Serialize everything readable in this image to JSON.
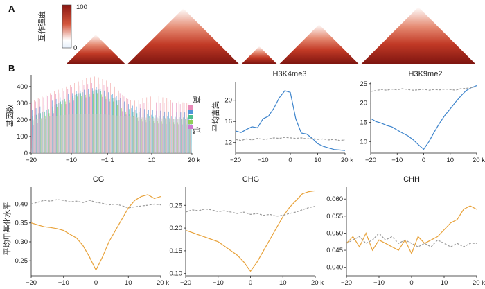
{
  "panel_a": {
    "label": "A",
    "colorbar": {
      "label": "互作强度",
      "max_label": "100",
      "min_label": "0",
      "low_color": "#e6f0fb",
      "mid_color": "#ffffff",
      "high_color": "#8b1712"
    },
    "domains": [
      {
        "start": 0.0,
        "end": 1.0
      },
      {
        "start": 1.05,
        "end": 2.95
      },
      {
        "start": 3.0,
        "end": 3.6
      },
      {
        "start": 3.65,
        "end": 5.0
      },
      {
        "start": 5.05,
        "end": 7.0
      }
    ]
  },
  "panel_b": {
    "label": "B"
  },
  "chart_data": [
    {
      "id": "gene-count",
      "type": "bar",
      "title": "",
      "xlabel": "",
      "ylabel": "基因数",
      "xlim": [
        -20,
        20
      ],
      "ylim": [
        0,
        470
      ],
      "xticks": [
        -20,
        -10,
        -1,
        10,
        20
      ],
      "xtick_labels": [
        "−20",
        "−10",
        "−1 1",
        "10",
        "20 k"
      ],
      "yticks": [
        0,
        100,
        200,
        300,
        400
      ],
      "legend": {
        "position": "right",
        "high_label": "高",
        "low_label": "低",
        "colors": [
          "#e88ab8",
          "#4f93d8",
          "#4cbf8c",
          "#8fd058",
          "#cc7ad0"
        ]
      },
      "bins": 40,
      "series_colors": [
        "#e88ab8",
        "#4f93d8",
        "#4cbf8c",
        "#8fd058",
        "#cc7ad0",
        "#f2a0a0",
        "#6fc3d8"
      ],
      "series_values": [
        [
          300,
          310,
          325,
          335,
          345,
          350,
          355,
          360,
          370,
          385,
          395,
          400,
          405,
          410,
          415,
          420,
          420,
          415,
          410,
          400,
          395,
          380,
          360,
          340,
          325,
          310,
          300,
          295,
          300,
          305,
          310,
          305,
          300,
          300,
          310,
          305,
          300,
          295,
          300,
          300
        ],
        [
          260,
          270,
          280,
          290,
          300,
          315,
          325,
          335,
          345,
          355,
          360,
          370,
          375,
          380,
          385,
          390,
          395,
          385,
          375,
          365,
          355,
          345,
          330,
          310,
          295,
          285,
          280,
          270,
          265,
          260,
          260,
          255,
          255,
          250,
          250,
          250,
          245,
          245,
          245,
          240
        ],
        [
          220,
          230,
          240,
          250,
          265,
          280,
          295,
          310,
          325,
          335,
          345,
          355,
          360,
          365,
          370,
          375,
          378,
          370,
          360,
          345,
          330,
          315,
          295,
          280,
          265,
          250,
          240,
          230,
          225,
          220,
          218,
          215,
          212,
          210,
          210,
          208,
          205,
          205,
          205,
          200
        ],
        [
          190,
          200,
          210,
          225,
          240,
          255,
          275,
          295,
          310,
          320,
          330,
          340,
          345,
          350,
          355,
          358,
          360,
          352,
          340,
          325,
          310,
          290,
          270,
          250,
          235,
          222,
          212,
          205,
          200,
          195,
          195,
          192,
          190,
          190,
          188,
          186,
          185,
          185,
          184,
          184
        ],
        [
          170,
          180,
          190,
          205,
          220,
          240,
          260,
          280,
          295,
          305,
          315,
          325,
          330,
          335,
          338,
          342,
          345,
          338,
          325,
          310,
          292,
          272,
          252,
          232,
          218,
          206,
          196,
          190,
          186,
          182,
          180,
          178,
          176,
          175,
          175,
          174,
          173,
          172,
          172,
          171
        ],
        [
          320,
          330,
          340,
          350,
          360,
          370,
          380,
          390,
          400,
          410,
          420,
          430,
          440,
          450,
          455,
          460,
          455,
          445,
          435,
          420,
          400,
          375,
          350,
          330,
          320,
          315,
          320,
          330,
          335,
          340,
          340,
          345,
          335,
          330,
          320,
          315,
          310,
          305,
          300,
          300
        ],
        [
          230,
          240,
          250,
          260,
          275,
          290,
          300,
          315,
          330,
          340,
          350,
          360,
          365,
          370,
          375,
          380,
          382,
          375,
          365,
          350,
          335,
          320,
          300,
          285,
          270,
          258,
          248,
          240,
          235,
          230,
          228,
          225,
          222,
          220,
          220,
          218,
          216,
          215,
          214,
          212
        ]
      ],
      "gray_overlay": [
        200,
        205,
        210,
        215,
        220,
        222,
        225,
        228,
        230,
        232,
        233,
        234,
        235,
        236,
        236,
        236,
        235,
        234,
        232,
        230,
        228,
        226,
        224,
        222,
        220,
        218,
        216,
        215,
        214,
        212,
        211,
        210,
        209,
        208,
        207,
        206,
        205,
        204,
        203,
        202
      ]
    },
    {
      "id": "h3k4me3",
      "type": "line",
      "title": "H3K4me3",
      "xlabel": "",
      "ylabel": "平均富集",
      "xlim": [
        -20,
        20
      ],
      "ylim": [
        10,
        23.5
      ],
      "xticks": [
        -20,
        -10,
        0,
        10,
        20
      ],
      "xtick_labels": [
        "−20",
        "−10",
        "0",
        "10",
        "20 k"
      ],
      "yticks": [
        12,
        16,
        20
      ],
      "series": [
        {
          "color": "#3d84cc",
          "dashed": false,
          "x": [
            -20,
            -18,
            -16,
            -14,
            -12,
            -10,
            -8,
            -6,
            -4,
            -2,
            0,
            2,
            4,
            6,
            8,
            10,
            12,
            14,
            16,
            18,
            20
          ],
          "y": [
            14.2,
            13.9,
            14.5,
            15.0,
            14.8,
            16.5,
            17.0,
            18.5,
            20.5,
            21.8,
            21.5,
            16.5,
            13.8,
            13.6,
            12.8,
            11.8,
            11.3,
            11.0,
            10.7,
            10.6,
            10.5
          ]
        },
        {
          "color": "#9a9a9a",
          "dashed": true,
          "x": [
            -20,
            -18,
            -16,
            -14,
            -12,
            -10,
            -8,
            -6,
            -4,
            -2,
            0,
            2,
            4,
            6,
            8,
            10,
            12,
            14,
            16,
            18,
            20
          ],
          "y": [
            12.6,
            12.4,
            12.7,
            12.5,
            12.8,
            12.6,
            12.7,
            12.9,
            12.8,
            13.0,
            12.9,
            12.8,
            12.9,
            12.7,
            12.8,
            12.6,
            12.7,
            12.5,
            12.6,
            12.4,
            12.5
          ]
        }
      ]
    },
    {
      "id": "h3k9me2",
      "type": "line",
      "title": "H3K9me2",
      "xlabel": "",
      "ylabel": "",
      "xlim": [
        -20,
        20
      ],
      "ylim": [
        7,
        25.5
      ],
      "xticks": [
        -20,
        -10,
        0,
        10,
        20
      ],
      "xtick_labels": [
        "−20",
        "−10",
        "0",
        "10",
        "20 k"
      ],
      "yticks": [
        10,
        15,
        20,
        25
      ],
      "series": [
        {
          "color": "#3d84cc",
          "dashed": false,
          "x": [
            -20,
            -18,
            -16,
            -14,
            -12,
            -10,
            -8,
            -6,
            -4,
            -2,
            0,
            2,
            4,
            6,
            8,
            10,
            12,
            14,
            16,
            18,
            20
          ],
          "y": [
            16.0,
            15.2,
            14.8,
            14.2,
            13.8,
            13.0,
            12.2,
            11.5,
            10.5,
            9.2,
            8.0,
            10.0,
            12.5,
            14.8,
            16.8,
            18.5,
            20.2,
            21.8,
            23.2,
            24.0,
            24.5
          ]
        },
        {
          "color": "#9a9a9a",
          "dashed": true,
          "x": [
            -20,
            -18,
            -16,
            -14,
            -12,
            -10,
            -8,
            -6,
            -4,
            -2,
            0,
            2,
            4,
            6,
            8,
            10,
            12,
            14,
            16,
            18,
            20
          ],
          "y": [
            23.0,
            23.2,
            23.5,
            23.3,
            23.6,
            23.4,
            23.7,
            23.5,
            23.3,
            23.4,
            23.6,
            23.3,
            23.5,
            23.4,
            23.6,
            23.5,
            23.3,
            23.7,
            23.8,
            24.0,
            24.3
          ]
        }
      ]
    },
    {
      "id": "cg",
      "type": "line",
      "title": "CG",
      "xlabel": "",
      "ylabel": "平均甲基化水平",
      "xlim": [
        -20,
        20
      ],
      "ylim": [
        0.21,
        0.445
      ],
      "xticks": [
        -20,
        -10,
        0,
        10,
        20
      ],
      "xtick_labels": [
        "−20",
        "−10",
        "0",
        "10",
        "20 k"
      ],
      "yticks": [
        0.25,
        0.3,
        0.35,
        0.4
      ],
      "ytick_labels": [
        "0.25",
        "0.30",
        "0.35",
        "0.40"
      ],
      "series": [
        {
          "color": "#e8a23a",
          "dashed": false,
          "x": [
            -20,
            -18,
            -16,
            -14,
            -12,
            -10,
            -8,
            -6,
            -4,
            -2,
            0,
            2,
            4,
            6,
            8,
            10,
            12,
            14,
            16,
            18,
            20
          ],
          "y": [
            0.35,
            0.345,
            0.34,
            0.338,
            0.335,
            0.33,
            0.32,
            0.31,
            0.29,
            0.26,
            0.225,
            0.26,
            0.3,
            0.33,
            0.36,
            0.39,
            0.41,
            0.42,
            0.425,
            0.415,
            0.42
          ]
        },
        {
          "color": "#9a9a9a",
          "dashed": true,
          "x": [
            -20,
            -18,
            -16,
            -14,
            -12,
            -10,
            -8,
            -6,
            -4,
            -2,
            0,
            2,
            4,
            6,
            8,
            10,
            12,
            14,
            16,
            18,
            20
          ],
          "y": [
            0.4,
            0.405,
            0.41,
            0.408,
            0.412,
            0.41,
            0.406,
            0.408,
            0.404,
            0.41,
            0.405,
            0.402,
            0.398,
            0.4,
            0.396,
            0.39,
            0.393,
            0.395,
            0.397,
            0.4,
            0.398
          ]
        }
      ]
    },
    {
      "id": "chg",
      "type": "line",
      "title": "CHG",
      "xlabel": "",
      "ylabel": "",
      "xlim": [
        -20,
        20
      ],
      "ylim": [
        0.095,
        0.29
      ],
      "xticks": [
        -20,
        -10,
        0,
        10,
        20
      ],
      "xtick_labels": [
        "−20",
        "−10",
        "0",
        "10",
        "20 k"
      ],
      "yticks": [
        0.1,
        0.15,
        0.2,
        0.25
      ],
      "ytick_labels": [
        "0.10",
        "0.15",
        "0.20",
        "0.25"
      ],
      "series": [
        {
          "color": "#e8a23a",
          "dashed": false,
          "x": [
            -20,
            -18,
            -16,
            -14,
            -12,
            -10,
            -8,
            -6,
            -4,
            -2,
            0,
            2,
            4,
            6,
            8,
            10,
            12,
            14,
            16,
            18,
            20
          ],
          "y": [
            0.195,
            0.19,
            0.185,
            0.18,
            0.175,
            0.17,
            0.16,
            0.15,
            0.14,
            0.125,
            0.105,
            0.125,
            0.15,
            0.175,
            0.2,
            0.225,
            0.245,
            0.26,
            0.275,
            0.28,
            0.282
          ]
        },
        {
          "color": "#9a9a9a",
          "dashed": true,
          "x": [
            -20,
            -18,
            -16,
            -14,
            -12,
            -10,
            -8,
            -6,
            -4,
            -2,
            0,
            2,
            4,
            6,
            8,
            10,
            12,
            14,
            16,
            18,
            20
          ],
          "y": [
            0.235,
            0.24,
            0.238,
            0.242,
            0.24,
            0.236,
            0.238,
            0.235,
            0.232,
            0.235,
            0.23,
            0.232,
            0.228,
            0.23,
            0.226,
            0.228,
            0.232,
            0.235,
            0.24,
            0.245,
            0.248
          ]
        }
      ]
    },
    {
      "id": "chh",
      "type": "line",
      "title": "CHH",
      "xlabel": "",
      "ylabel": "",
      "xlim": [
        -20,
        20
      ],
      "ylim": [
        0.0375,
        0.0635
      ],
      "xticks": [
        -20,
        -10,
        0,
        10,
        20
      ],
      "xtick_labels": [
        "−20",
        "−10",
        "0",
        "10",
        "20 k"
      ],
      "yticks": [
        0.04,
        0.045,
        0.05,
        0.055,
        0.06
      ],
      "ytick_labels": [
        "0.040",
        "0.045",
        "0.050",
        "0.055",
        "0.060"
      ],
      "series": [
        {
          "color": "#e8a23a",
          "dashed": false,
          "x": [
            -20,
            -18,
            -16,
            -14,
            -12,
            -10,
            -8,
            -6,
            -4,
            -2,
            0,
            2,
            4,
            6,
            8,
            10,
            12,
            14,
            16,
            18,
            20
          ],
          "y": [
            0.047,
            0.049,
            0.046,
            0.05,
            0.045,
            0.048,
            0.047,
            0.046,
            0.045,
            0.048,
            0.044,
            0.049,
            0.047,
            0.048,
            0.049,
            0.051,
            0.053,
            0.054,
            0.057,
            0.058,
            0.057
          ]
        },
        {
          "color": "#9a9a9a",
          "dashed": true,
          "x": [
            -20,
            -18,
            -16,
            -14,
            -12,
            -10,
            -8,
            -6,
            -4,
            -2,
            0,
            2,
            4,
            6,
            8,
            10,
            12,
            14,
            16,
            18,
            20
          ],
          "y": [
            0.047,
            0.048,
            0.049,
            0.047,
            0.048,
            0.05,
            0.048,
            0.049,
            0.047,
            0.048,
            0.047,
            0.046,
            0.047,
            0.046,
            0.048,
            0.047,
            0.046,
            0.047,
            0.046,
            0.047,
            0.047
          ]
        }
      ]
    }
  ]
}
